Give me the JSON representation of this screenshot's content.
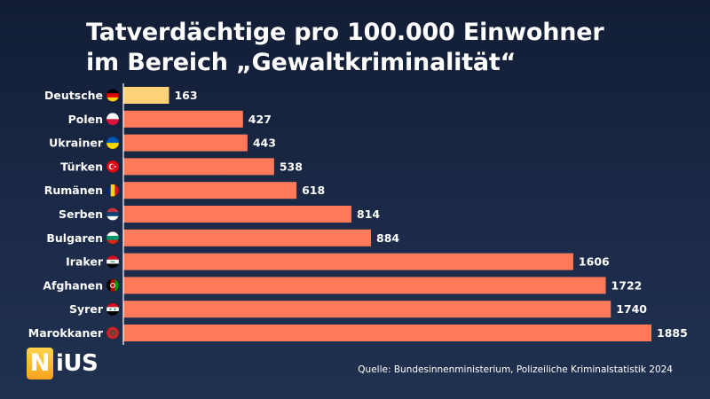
{
  "title_lines": [
    "Tatverdächtige pro 100.000 Einwohner",
    "im Bereich „Gewaltkriminalität“"
  ],
  "source": "Quelle: Bundesinnenministerium, Polizeiliche Kriminalstatistik 2024",
  "logo": {
    "first": "N",
    "rest": "iUS"
  },
  "colors": {
    "highlight": "#ffd27a",
    "bar": "#ff7a5a",
    "text": "#ffffff",
    "axis": "#ffffff"
  },
  "chart_data": {
    "type": "bar",
    "orientation": "horizontal",
    "title": "Tatverdächtige pro 100.000 Einwohner im Bereich „Gewaltkriminalität“",
    "categories": [
      "Deutsche",
      "Polen",
      "Ukrainer",
      "Türken",
      "Rumänen",
      "Serben",
      "Bulgaren",
      "Iraker",
      "Afghanen",
      "Syrer",
      "Marokkaner"
    ],
    "values": [
      163,
      427,
      443,
      538,
      618,
      814,
      884,
      1606,
      1722,
      1740,
      1885
    ],
    "value_labels": [
      "163",
      "427",
      "443",
      "538",
      "618",
      "814",
      "884",
      "1606",
      "1722",
      "1740",
      "1885"
    ],
    "highlight_index": 0,
    "flags": [
      "flag-germany-icon",
      "flag-poland-icon",
      "flag-ukraine-icon",
      "flag-turkey-icon",
      "flag-romania-icon",
      "flag-serbia-icon",
      "flag-bulgaria-icon",
      "flag-iraq-icon",
      "flag-afghanistan-icon",
      "flag-syria-icon",
      "flag-morocco-icon"
    ],
    "xlim": [
      0,
      1885
    ],
    "grid": false,
    "legend": "none",
    "data_labels": "end"
  }
}
